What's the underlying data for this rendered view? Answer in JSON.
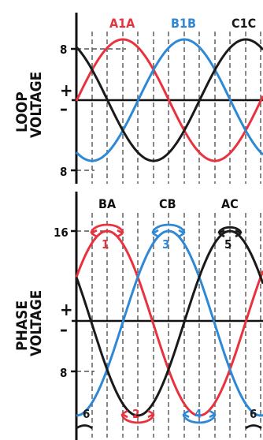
{
  "colors": {
    "red": "#e8333f",
    "blue": "#2e88d6",
    "black": "#1a1a1a",
    "grid": "#555555"
  },
  "loop_panel": {
    "axis_title_line1": "LOOP",
    "axis_title_line2": "VOLTAGE",
    "tick_top": "8",
    "tick_bottom": "8",
    "plus": "+",
    "minus": "–",
    "curve_labels": [
      "A1A",
      "B1B",
      "C1C"
    ]
  },
  "phase_panel": {
    "axis_title_line1": "PHASE",
    "axis_title_line2": "VOLTAGE",
    "tick_top": "16",
    "tick_lower": "8",
    "plus": "+",
    "minus": "–",
    "top_labels": [
      "BA",
      "CB",
      "AC"
    ],
    "top_numbers": [
      "1",
      "3",
      "5"
    ],
    "bottom_numbers": [
      "6",
      "2",
      "4",
      "6"
    ]
  }
}
